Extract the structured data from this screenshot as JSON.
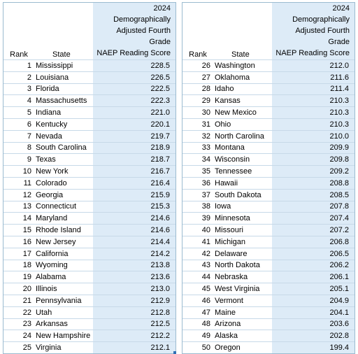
{
  "headers": {
    "rank": "Rank",
    "state": "State",
    "score": "2024 Demographically\nAdjusted Fourth Grade\nNAEP Reading Score"
  },
  "left_rows": [
    {
      "rank": "1",
      "state": "Mississippi",
      "score": "228.5"
    },
    {
      "rank": "2",
      "state": "Louisiana",
      "score": "226.5"
    },
    {
      "rank": "3",
      "state": "Florida",
      "score": "222.5"
    },
    {
      "rank": "4",
      "state": "Massachusetts",
      "score": "222.3"
    },
    {
      "rank": "5",
      "state": "Indiana",
      "score": "221.0"
    },
    {
      "rank": "6",
      "state": "Kentucky",
      "score": "220.1"
    },
    {
      "rank": "7",
      "state": "Nevada",
      "score": "219.7"
    },
    {
      "rank": "8",
      "state": "South Carolina",
      "score": "218.9"
    },
    {
      "rank": "9",
      "state": "Texas",
      "score": "218.7"
    },
    {
      "rank": "10",
      "state": "New York",
      "score": "216.7"
    },
    {
      "rank": "11",
      "state": "Colorado",
      "score": "216.4"
    },
    {
      "rank": "12",
      "state": "Georgia",
      "score": "215.9"
    },
    {
      "rank": "13",
      "state": "Connecticut",
      "score": "215.3"
    },
    {
      "rank": "14",
      "state": "Maryland",
      "score": "214.6"
    },
    {
      "rank": "15",
      "state": "Rhode Island",
      "score": "214.6"
    },
    {
      "rank": "16",
      "state": "New Jersey",
      "score": "214.4"
    },
    {
      "rank": "17",
      "state": "California",
      "score": "214.2"
    },
    {
      "rank": "18",
      "state": "Wyoming",
      "score": "213.8"
    },
    {
      "rank": "19",
      "state": "Alabama",
      "score": "213.6"
    },
    {
      "rank": "20",
      "state": "Illinois",
      "score": "213.0"
    },
    {
      "rank": "21",
      "state": "Pennsylvania",
      "score": "212.9"
    },
    {
      "rank": "22",
      "state": "Utah",
      "score": "212.8"
    },
    {
      "rank": "23",
      "state": "Arkansas",
      "score": "212.5"
    },
    {
      "rank": "24",
      "state": "New Hampshire",
      "score": "212.2"
    },
    {
      "rank": "25",
      "state": "Virginia",
      "score": "212.1"
    }
  ],
  "right_rows": [
    {
      "rank": "26",
      "state": "Washington",
      "score": "212.0"
    },
    {
      "rank": "27",
      "state": "Oklahoma",
      "score": "211.6"
    },
    {
      "rank": "28",
      "state": "Idaho",
      "score": "211.4"
    },
    {
      "rank": "29",
      "state": "Kansas",
      "score": "210.3"
    },
    {
      "rank": "30",
      "state": "New Mexico",
      "score": "210.3"
    },
    {
      "rank": "31",
      "state": "Ohio",
      "score": "210.3"
    },
    {
      "rank": "32",
      "state": "North Carolina",
      "score": "210.0"
    },
    {
      "rank": "33",
      "state": "Montana",
      "score": "209.9"
    },
    {
      "rank": "34",
      "state": "Wisconsin",
      "score": "209.8"
    },
    {
      "rank": "35",
      "state": "Tennessee",
      "score": "209.2"
    },
    {
      "rank": "36",
      "state": "Hawaii",
      "score": "208.8"
    },
    {
      "rank": "37",
      "state": "South Dakota",
      "score": "208.5"
    },
    {
      "rank": "38",
      "state": "Iowa",
      "score": "207.8"
    },
    {
      "rank": "39",
      "state": "Minnesota",
      "score": "207.4"
    },
    {
      "rank": "40",
      "state": "Missouri",
      "score": "207.2"
    },
    {
      "rank": "41",
      "state": "Michigan",
      "score": "206.8"
    },
    {
      "rank": "42",
      "state": "Delaware",
      "score": "206.5"
    },
    {
      "rank": "43",
      "state": "North Dakota",
      "score": "206.2"
    },
    {
      "rank": "44",
      "state": "Nebraska",
      "score": "206.1"
    },
    {
      "rank": "45",
      "state": "West Virginia",
      "score": "205.1"
    },
    {
      "rank": "46",
      "state": "Vermont",
      "score": "204.9"
    },
    {
      "rank": "47",
      "state": "Maine",
      "score": "204.1"
    },
    {
      "rank": "48",
      "state": "Arizona",
      "score": "203.6"
    },
    {
      "rank": "49",
      "state": "Alaska",
      "score": "202.8"
    },
    {
      "rank": "50",
      "state": "Oregon",
      "score": "199.4"
    }
  ]
}
